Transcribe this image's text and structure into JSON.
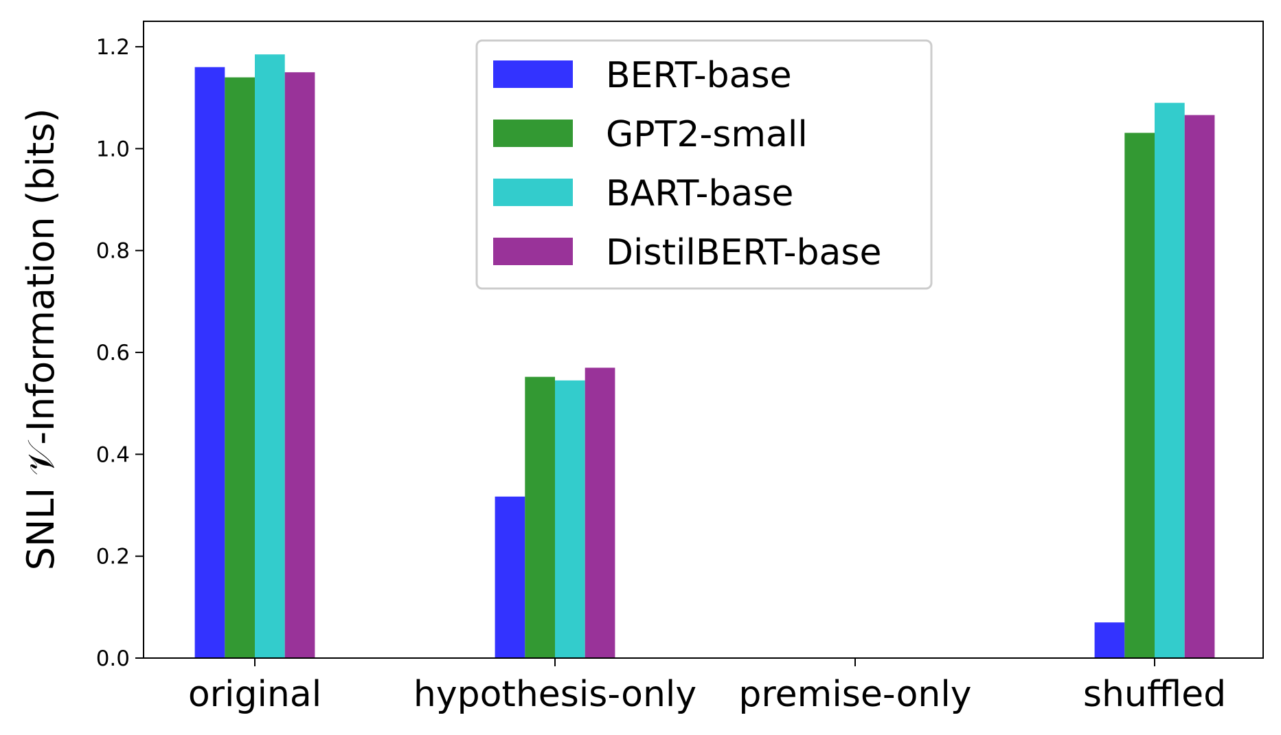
{
  "chart_data": {
    "type": "bar",
    "title": "",
    "xlabel": "",
    "ylabel": "SNLI 𝒱-Information (bits)",
    "categories": [
      "original",
      "hypothesis-only",
      "premise-only",
      "shuffled"
    ],
    "ylim": [
      0,
      1.25
    ],
    "yticks": [
      "0.0",
      "0.2",
      "0.4",
      "0.6",
      "0.8",
      "1.0",
      "1.2"
    ],
    "grid": false,
    "legend_position": "top-center",
    "series": [
      {
        "name": "BERT-base",
        "color": "#3333ff",
        "values": [
          1.16,
          0.317,
          0,
          0.07
        ]
      },
      {
        "name": "GPT2-small",
        "color": "#339933",
        "values": [
          1.14,
          0.552,
          0,
          1.031
        ]
      },
      {
        "name": "BART-base",
        "color": "#33cccc",
        "values": [
          1.185,
          0.545,
          0,
          1.09
        ]
      },
      {
        "name": "DistilBERT-base",
        "color": "#993399",
        "values": [
          1.15,
          0.57,
          0,
          1.066
        ]
      }
    ]
  }
}
